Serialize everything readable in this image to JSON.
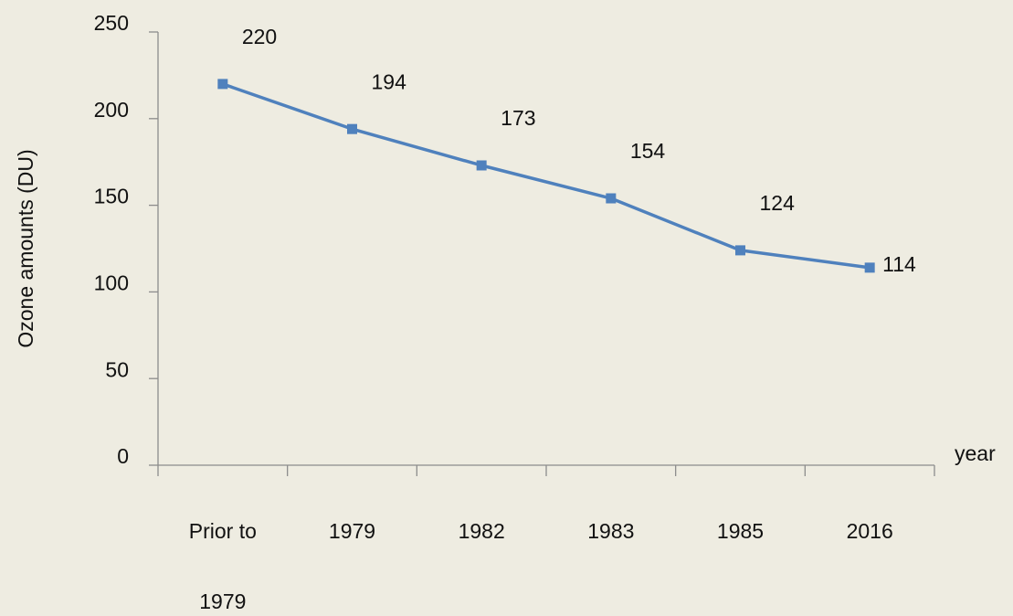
{
  "chart_data": {
    "type": "line",
    "x_label": "year",
    "y_label": "Ozone amounts (DU)",
    "categories": [
      "Prior to\n1979",
      "1979",
      "1982",
      "1983",
      "1985",
      "2016"
    ],
    "series": [
      {
        "name": "Ozone amounts",
        "color": "#4f81bd",
        "values": [
          220,
          194,
          173,
          154,
          124,
          114
        ]
      }
    ],
    "ylim": [
      0,
      250
    ],
    "yticks": [
      0,
      50,
      100,
      150,
      200,
      250
    ],
    "grid": false
  }
}
